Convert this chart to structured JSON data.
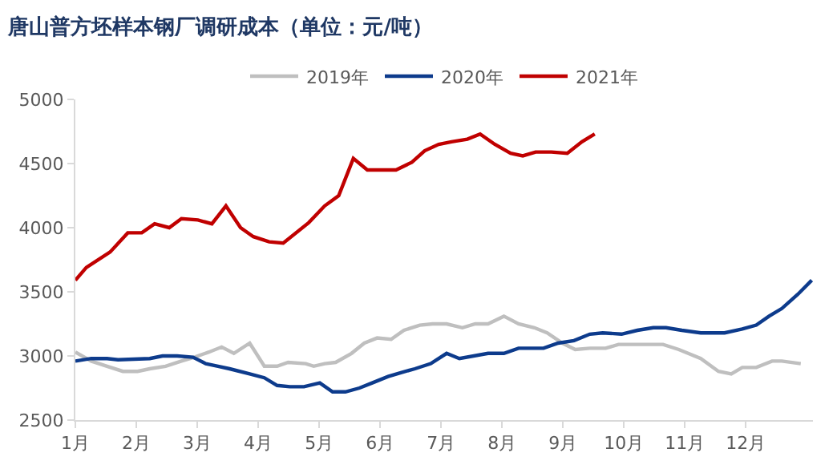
{
  "chart_data": {
    "type": "line",
    "title": "唐山普方坯样本钢厂调研成本（单位：元/吨）",
    "xlim": [
      1,
      13.1
    ],
    "xticks": [
      {
        "value": 1,
        "label": "1月"
      },
      {
        "value": 2,
        "label": "2月"
      },
      {
        "value": 3,
        "label": "3月"
      },
      {
        "value": 4,
        "label": "4月"
      },
      {
        "value": 5,
        "label": "5月"
      },
      {
        "value": 6,
        "label": "6月"
      },
      {
        "value": 7,
        "label": "7月"
      },
      {
        "value": 8,
        "label": "8月"
      },
      {
        "value": 9,
        "label": "9月"
      },
      {
        "value": 10,
        "label": "10月"
      },
      {
        "value": 11,
        "label": "11月"
      },
      {
        "value": 12,
        "label": "12月"
      }
    ],
    "ylim": [
      2500,
      5000
    ],
    "yticks": [
      2500,
      3000,
      3500,
      4000,
      4500,
      5000
    ],
    "legend": "top",
    "marker": "none",
    "line_style": "solid",
    "series": [
      {
        "name": "2019年",
        "color": "#bfbfbf",
        "x": [
          1.0,
          1.26,
          1.52,
          1.78,
          2.02,
          2.22,
          2.48,
          2.74,
          2.95,
          3.19,
          3.4,
          3.6,
          3.86,
          4.1,
          4.31,
          4.49,
          4.78,
          4.91,
          5.09,
          5.27,
          5.53,
          5.74,
          5.95,
          6.18,
          6.39,
          6.65,
          6.86,
          7.09,
          7.35,
          7.56,
          7.77,
          8.03,
          8.27,
          8.53,
          8.74,
          8.99,
          9.2,
          9.44,
          9.7,
          9.91,
          10.38,
          10.64,
          10.9,
          11.26,
          11.55,
          11.76,
          11.94,
          12.17,
          12.43,
          12.59,
          12.9
        ],
        "values": [
          3030,
          2960,
          2920,
          2880,
          2880,
          2900,
          2920,
          2960,
          2990,
          3030,
          3070,
          3020,
          3100,
          2920,
          2920,
          2950,
          2940,
          2920,
          2940,
          2950,
          3020,
          3100,
          3140,
          3130,
          3200,
          3240,
          3250,
          3250,
          3220,
          3250,
          3250,
          3310,
          3250,
          3220,
          3180,
          3100,
          3050,
          3060,
          3060,
          3090,
          3090,
          3090,
          3050,
          2980,
          2880,
          2860,
          2910,
          2910,
          2960,
          2960,
          2940
        ]
      },
      {
        "name": "2020年",
        "color": "#0d3b8c",
        "x": [
          1.0,
          1.26,
          1.52,
          1.7,
          2.22,
          2.43,
          2.67,
          2.93,
          3.14,
          3.34,
          3.53,
          3.86,
          4.1,
          4.31,
          4.52,
          4.75,
          5.01,
          5.22,
          5.43,
          5.66,
          5.87,
          6.13,
          6.34,
          6.57,
          6.83,
          7.09,
          7.3,
          7.77,
          8.03,
          8.27,
          8.68,
          8.92,
          9.18,
          9.44,
          9.65,
          9.96,
          10.22,
          10.48,
          10.69,
          10.95,
          11.26,
          11.65,
          11.94,
          12.17,
          12.38,
          12.59,
          12.85,
          13.08
        ],
        "values": [
          2960,
          2980,
          2980,
          2970,
          2980,
          3000,
          3000,
          2990,
          2940,
          2920,
          2900,
          2860,
          2830,
          2770,
          2760,
          2760,
          2790,
          2720,
          2720,
          2750,
          2790,
          2840,
          2870,
          2900,
          2940,
          3020,
          2980,
          3020,
          3020,
          3060,
          3060,
          3100,
          3120,
          3170,
          3180,
          3170,
          3200,
          3220,
          3220,
          3200,
          3180,
          3180,
          3210,
          3240,
          3310,
          3370,
          3480,
          3590
        ]
      },
      {
        "name": "2021年",
        "color": "#c00000",
        "x": [
          1.0,
          1.18,
          1.57,
          1.86,
          2.09,
          2.3,
          2.54,
          2.74,
          3.01,
          3.24,
          3.47,
          3.71,
          3.92,
          4.18,
          4.41,
          4.83,
          5.09,
          5.32,
          5.56,
          5.79,
          6.0,
          6.26,
          6.52,
          6.73,
          6.96,
          7.17,
          7.43,
          7.64,
          7.88,
          8.14,
          8.34,
          8.55,
          8.81,
          9.07,
          9.31,
          9.52
        ],
        "values": [
          3590,
          3690,
          3810,
          3960,
          3960,
          4030,
          4000,
          4070,
          4060,
          4030,
          4170,
          4000,
          3930,
          3890,
          3880,
          4040,
          4170,
          4250,
          4540,
          4450,
          4450,
          4450,
          4510,
          4600,
          4650,
          4670,
          4690,
          4730,
          4650,
          4580,
          4560,
          4590,
          4590,
          4580,
          4670,
          4730
        ]
      }
    ]
  }
}
